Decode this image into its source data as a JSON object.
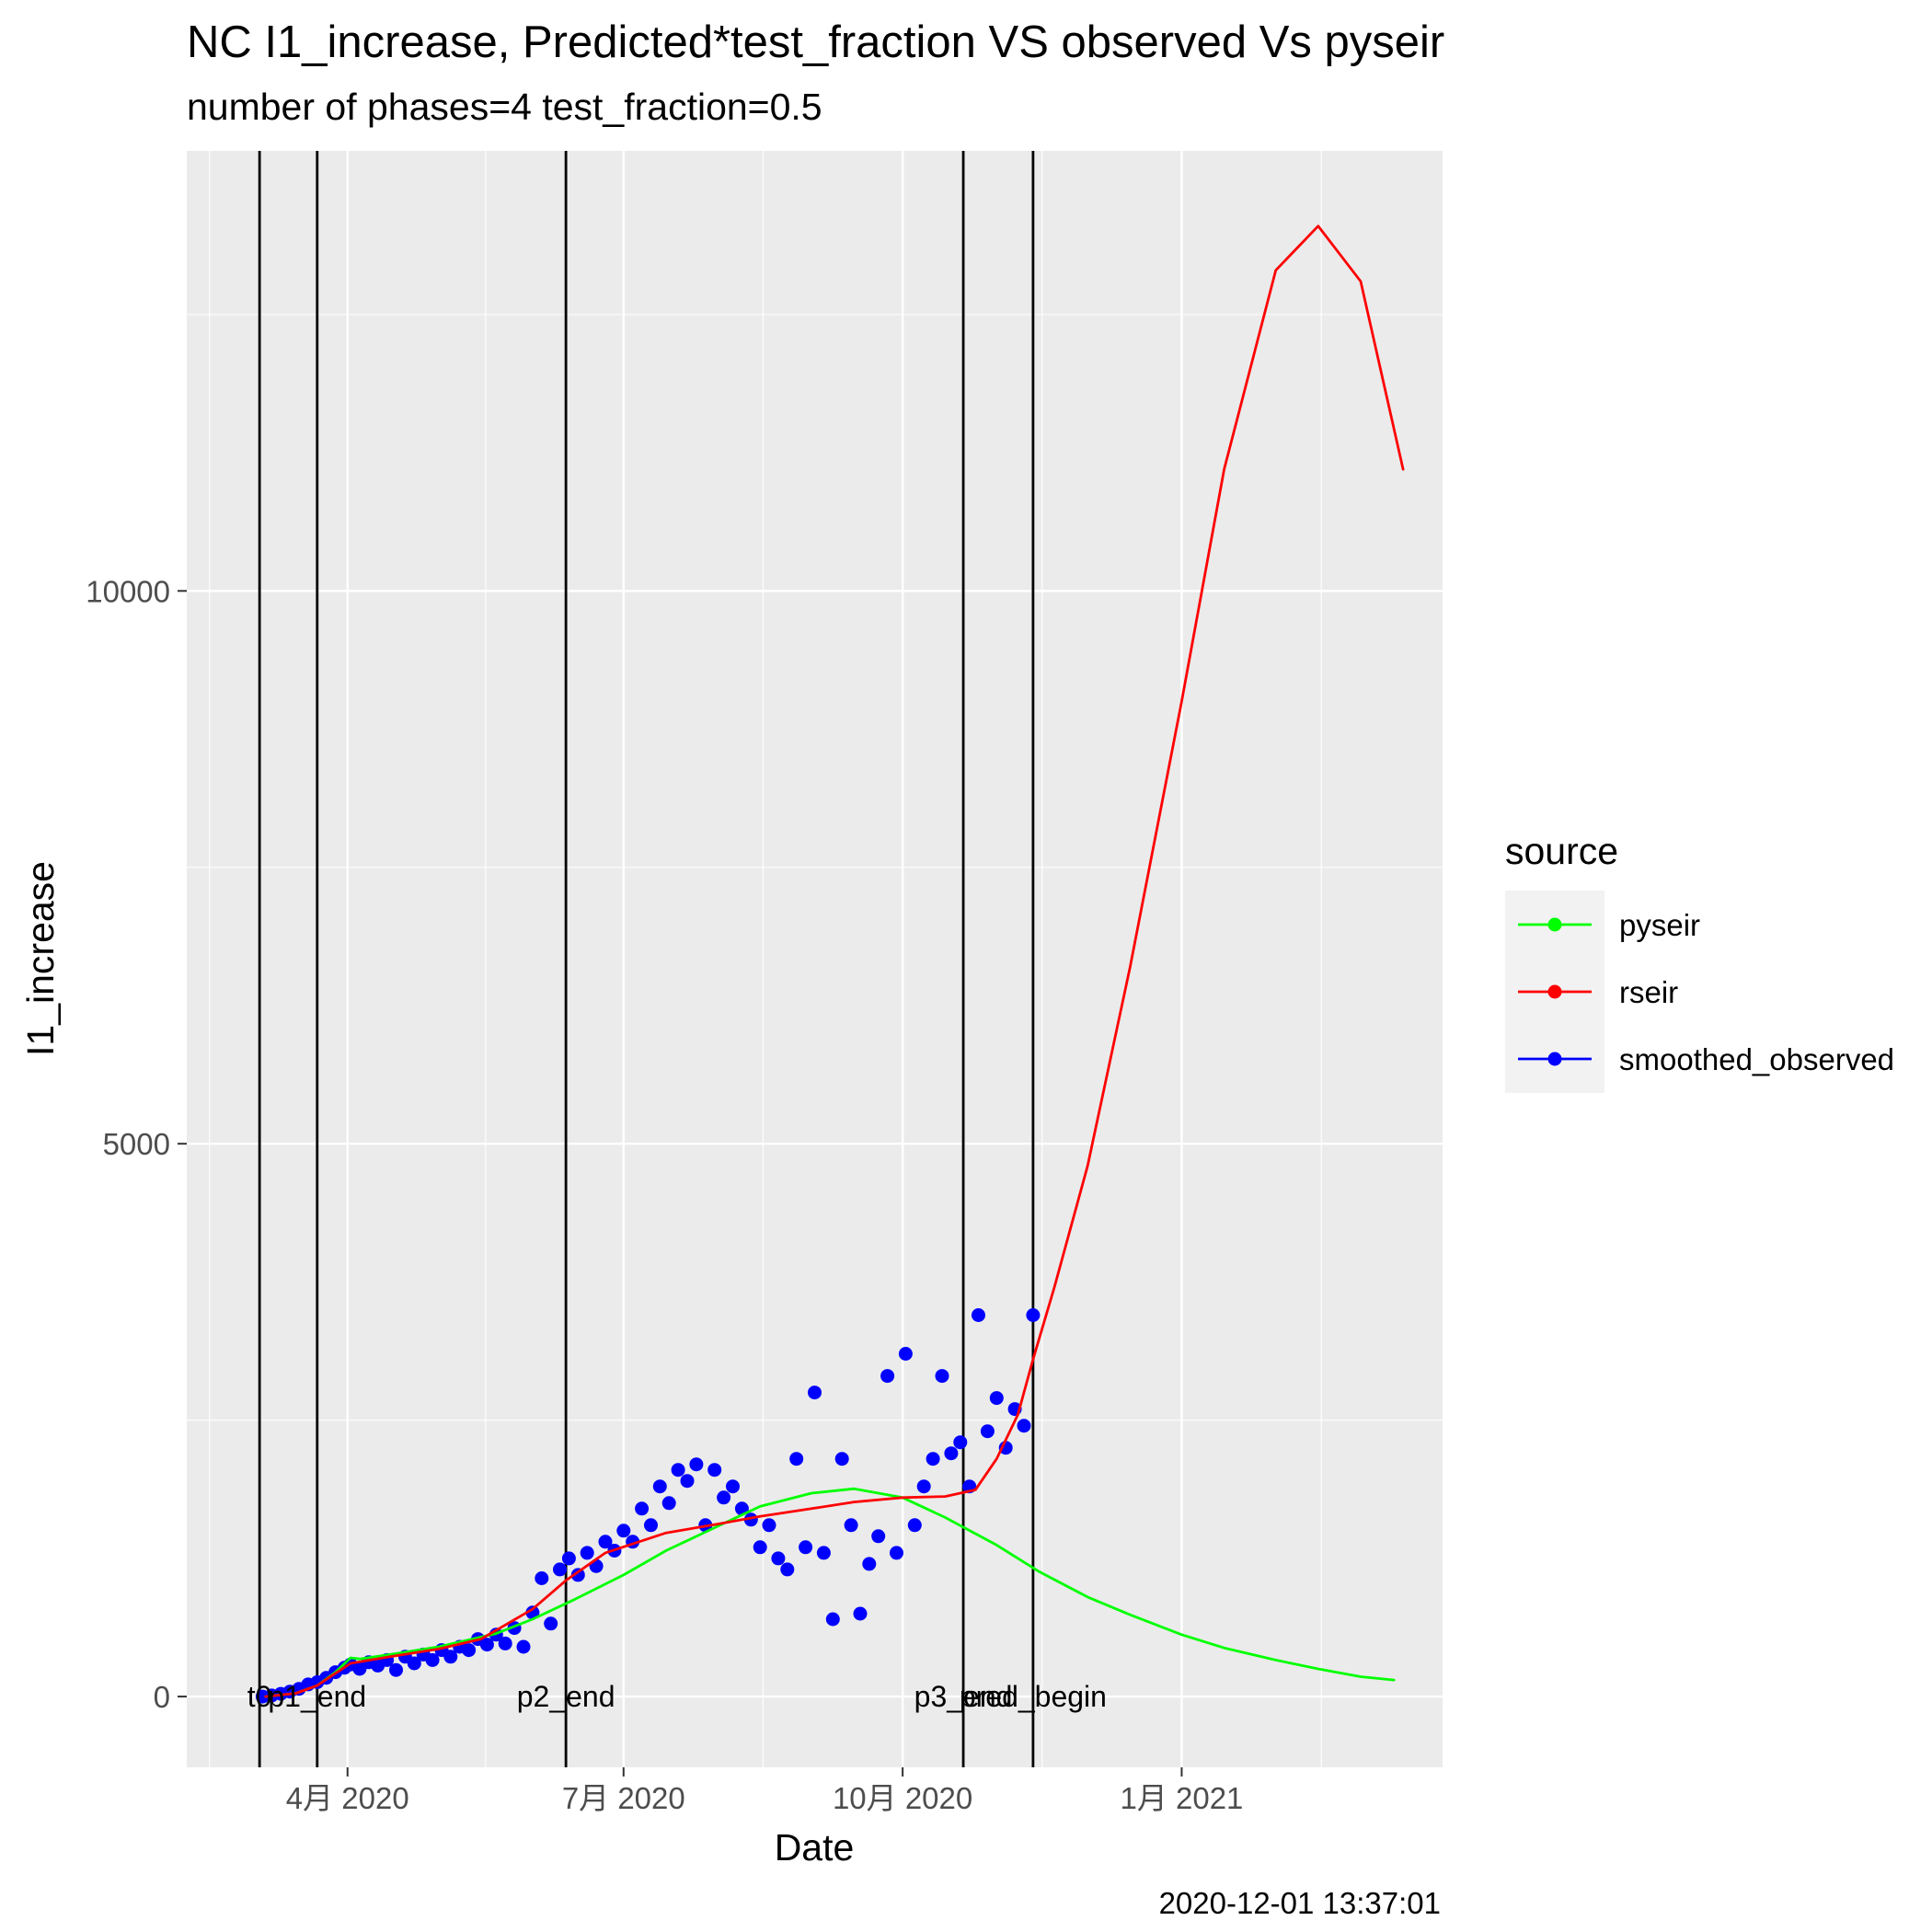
{
  "chart_data": {
    "type": "line",
    "title": "NC I1_increase, Predicted*test_fraction VS observed Vs pyseir",
    "subtitle": "number of phases=4   test_fraction=0.5",
    "xlabel": "Date",
    "ylabel": "I1_increase",
    "caption": "2020-12-01 13:37:01",
    "x_range": [
      "2020-02-08",
      "2021-03-28"
    ],
    "ylim": [
      -640,
      13980
    ],
    "x_ticks": [
      {
        "date": "2020-04-01",
        "label": "4月 2020"
      },
      {
        "date": "2020-07-01",
        "label": "7月 2020"
      },
      {
        "date": "2020-10-01",
        "label": "10月 2020"
      },
      {
        "date": "2021-01-01",
        "label": "1月 2021"
      }
    ],
    "y_ticks": [
      0,
      5000,
      10000
    ],
    "grid": true,
    "legend": {
      "title": "source",
      "position": "right",
      "entries": [
        {
          "label": "pyseir",
          "color": "#00ff00"
        },
        {
          "label": "rseir",
          "color": "#ff0000"
        },
        {
          "label": "smoothed_observed",
          "color": "#0000ff"
        }
      ]
    },
    "vlines": [
      {
        "date": "2020-03-03",
        "label": "t0"
      },
      {
        "date": "2020-03-22",
        "label": "p1_end"
      },
      {
        "date": "2020-06-12",
        "label": "p2_end"
      },
      {
        "date": "2020-10-21",
        "label": "p3_end"
      },
      {
        "date": "2020-11-13",
        "label": "pred_begin"
      }
    ],
    "series": [
      {
        "name": "pyseir",
        "color": "#00ff00",
        "mark": "line",
        "points": [
          [
            "2020-03-05",
            0
          ],
          [
            "2020-03-15",
            30
          ],
          [
            "2020-03-22",
            100
          ],
          [
            "2020-03-28",
            220
          ],
          [
            "2020-04-02",
            350
          ],
          [
            "2020-04-05",
            340
          ],
          [
            "2020-04-15",
            380
          ],
          [
            "2020-05-01",
            450
          ],
          [
            "2020-05-20",
            570
          ],
          [
            "2020-06-01",
            700
          ],
          [
            "2020-06-15",
            880
          ],
          [
            "2020-07-01",
            1100
          ],
          [
            "2020-07-15",
            1320
          ],
          [
            "2020-08-01",
            1540
          ],
          [
            "2020-08-15",
            1720
          ],
          [
            "2020-09-01",
            1840
          ],
          [
            "2020-09-15",
            1880
          ],
          [
            "2020-10-01",
            1800
          ],
          [
            "2020-10-15",
            1620
          ],
          [
            "2020-11-01",
            1370
          ],
          [
            "2020-11-15",
            1130
          ],
          [
            "2020-12-01",
            900
          ],
          [
            "2020-12-15",
            740
          ],
          [
            "2021-01-01",
            560
          ],
          [
            "2021-01-15",
            440
          ],
          [
            "2021-02-01",
            330
          ],
          [
            "2021-02-15",
            250
          ],
          [
            "2021-03-01",
            180
          ],
          [
            "2021-03-12",
            150
          ]
        ]
      },
      {
        "name": "rseir",
        "color": "#ff0000",
        "mark": "line",
        "points": [
          [
            "2020-03-05",
            0
          ],
          [
            "2020-03-15",
            30
          ],
          [
            "2020-03-22",
            100
          ],
          [
            "2020-03-28",
            210
          ],
          [
            "2020-04-02",
            300
          ],
          [
            "2020-04-15",
            360
          ],
          [
            "2020-05-01",
            430
          ],
          [
            "2020-05-15",
            520
          ],
          [
            "2020-06-01",
            790
          ],
          [
            "2020-06-12",
            1050
          ],
          [
            "2020-06-25",
            1300
          ],
          [
            "2020-07-15",
            1480
          ],
          [
            "2020-08-01",
            1560
          ],
          [
            "2020-08-15",
            1630
          ],
          [
            "2020-09-01",
            1700
          ],
          [
            "2020-09-15",
            1760
          ],
          [
            "2020-10-01",
            1800
          ],
          [
            "2020-10-15",
            1810
          ],
          [
            "2020-10-25",
            1870
          ],
          [
            "2020-11-01",
            2150
          ],
          [
            "2020-11-08",
            2550
          ],
          [
            "2020-11-13",
            3050
          ],
          [
            "2020-11-20",
            3700
          ],
          [
            "2020-12-01",
            4800
          ],
          [
            "2020-12-15",
            6600
          ],
          [
            "2021-01-01",
            9000
          ],
          [
            "2021-01-15",
            11100
          ],
          [
            "2021-02-01",
            12900
          ],
          [
            "2021-02-15",
            13300
          ],
          [
            "2021-03-01",
            12800
          ],
          [
            "2021-03-15",
            11100
          ]
        ]
      },
      {
        "name": "smoothed_observed",
        "color": "#0000ff",
        "mark": "point",
        "points": [
          [
            "2020-03-04",
            0
          ],
          [
            "2020-03-07",
            10
          ],
          [
            "2020-03-10",
            25
          ],
          [
            "2020-03-13",
            45
          ],
          [
            "2020-03-16",
            70
          ],
          [
            "2020-03-19",
            110
          ],
          [
            "2020-03-22",
            130
          ],
          [
            "2020-03-25",
            170
          ],
          [
            "2020-03-28",
            220
          ],
          [
            "2020-03-31",
            260
          ],
          [
            "2020-04-02",
            290
          ],
          [
            "2020-04-05",
            250
          ],
          [
            "2020-04-08",
            310
          ],
          [
            "2020-04-11",
            280
          ],
          [
            "2020-04-14",
            330
          ],
          [
            "2020-04-17",
            240
          ],
          [
            "2020-04-20",
            360
          ],
          [
            "2020-04-23",
            300
          ],
          [
            "2020-04-26",
            380
          ],
          [
            "2020-04-29",
            330
          ],
          [
            "2020-05-02",
            420
          ],
          [
            "2020-05-05",
            360
          ],
          [
            "2020-05-08",
            450
          ],
          [
            "2020-05-11",
            420
          ],
          [
            "2020-05-14",
            520
          ],
          [
            "2020-05-17",
            470
          ],
          [
            "2020-05-20",
            560
          ],
          [
            "2020-05-23",
            480
          ],
          [
            "2020-05-26",
            620
          ],
          [
            "2020-05-29",
            450
          ],
          [
            "2020-06-01",
            760
          ],
          [
            "2020-06-04",
            1070
          ],
          [
            "2020-06-07",
            660
          ],
          [
            "2020-06-10",
            1150
          ],
          [
            "2020-06-13",
            1250
          ],
          [
            "2020-06-16",
            1100
          ],
          [
            "2020-06-19",
            1300
          ],
          [
            "2020-06-22",
            1180
          ],
          [
            "2020-06-25",
            1400
          ],
          [
            "2020-06-28",
            1320
          ],
          [
            "2020-07-01",
            1500
          ],
          [
            "2020-07-04",
            1400
          ],
          [
            "2020-07-07",
            1700
          ],
          [
            "2020-07-10",
            1550
          ],
          [
            "2020-07-13",
            1900
          ],
          [
            "2020-07-16",
            1750
          ],
          [
            "2020-07-19",
            2050
          ],
          [
            "2020-07-22",
            1950
          ],
          [
            "2020-07-25",
            2100
          ],
          [
            "2020-07-28",
            1550
          ],
          [
            "2020-07-31",
            2050
          ],
          [
            "2020-08-03",
            1800
          ],
          [
            "2020-08-06",
            1900
          ],
          [
            "2020-08-09",
            1700
          ],
          [
            "2020-08-12",
            1600
          ],
          [
            "2020-08-15",
            1350
          ],
          [
            "2020-08-18",
            1550
          ],
          [
            "2020-08-21",
            1250
          ],
          [
            "2020-08-24",
            1150
          ],
          [
            "2020-08-27",
            2150
          ],
          [
            "2020-08-30",
            1350
          ],
          [
            "2020-09-02",
            2750
          ],
          [
            "2020-09-05",
            1300
          ],
          [
            "2020-09-08",
            700
          ],
          [
            "2020-09-11",
            2150
          ],
          [
            "2020-09-14",
            1550
          ],
          [
            "2020-09-17",
            750
          ],
          [
            "2020-09-20",
            1200
          ],
          [
            "2020-09-23",
            1450
          ],
          [
            "2020-09-26",
            2900
          ],
          [
            "2020-09-29",
            1300
          ],
          [
            "2020-10-02",
            3100
          ],
          [
            "2020-10-05",
            1550
          ],
          [
            "2020-10-08",
            1900
          ],
          [
            "2020-10-11",
            2150
          ],
          [
            "2020-10-14",
            2900
          ],
          [
            "2020-10-17",
            2200
          ],
          [
            "2020-10-20",
            2300
          ],
          [
            "2020-10-23",
            1900
          ],
          [
            "2020-10-26",
            3450
          ],
          [
            "2020-10-29",
            2400
          ],
          [
            "2020-11-01",
            2700
          ],
          [
            "2020-11-04",
            2250
          ],
          [
            "2020-11-07",
            2600
          ],
          [
            "2020-11-10",
            2450
          ],
          [
            "2020-11-13",
            3450
          ]
        ]
      }
    ]
  }
}
